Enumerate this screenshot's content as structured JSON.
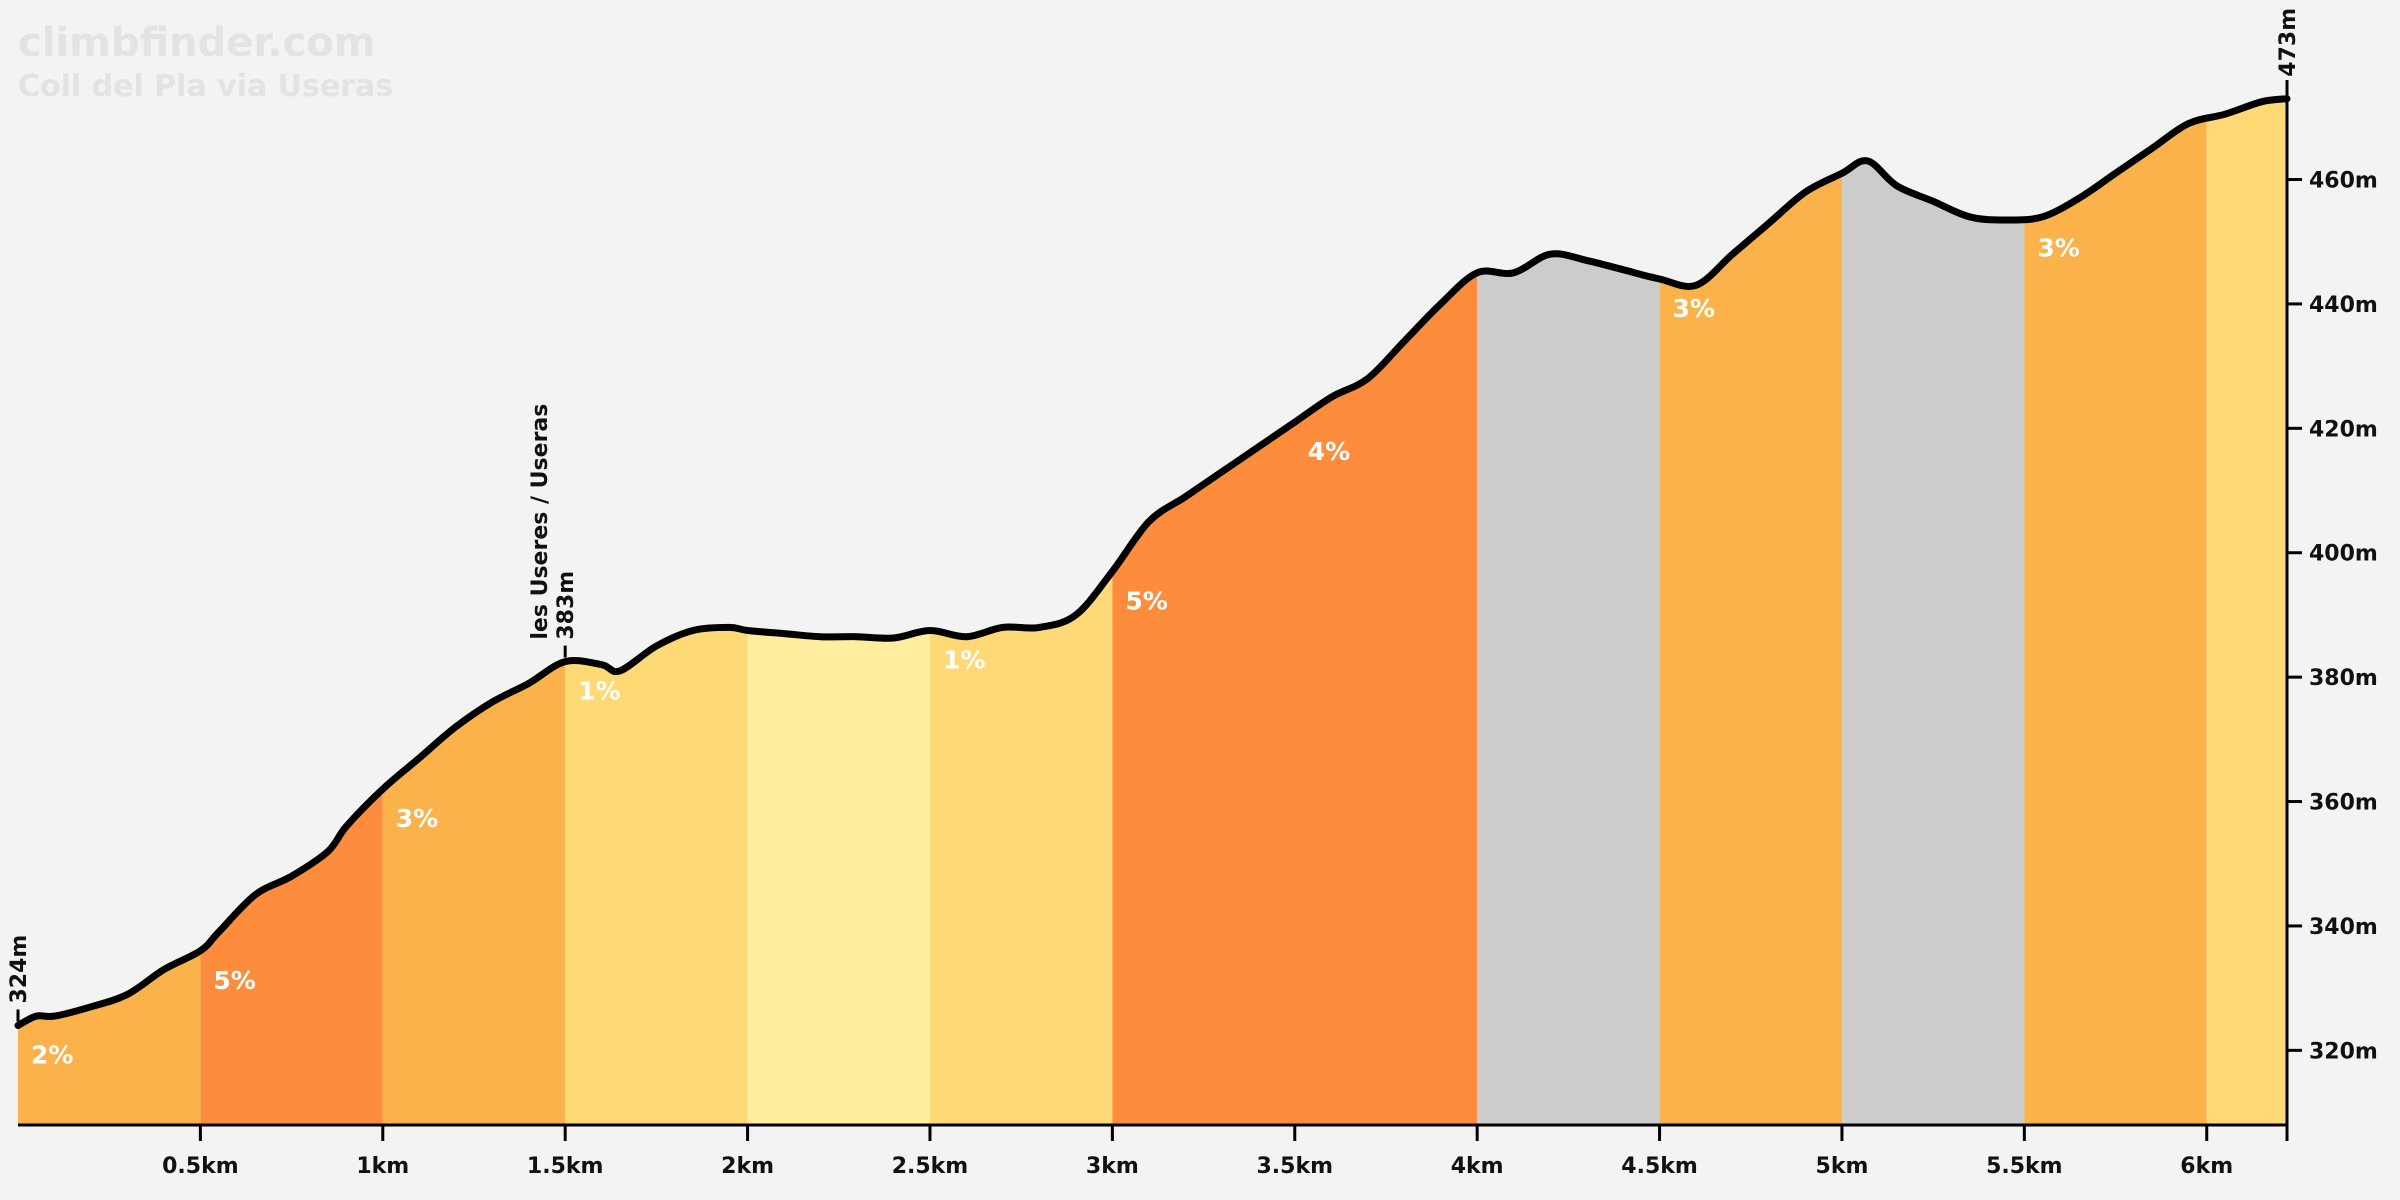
{
  "brand": {
    "site": "climbfinder.com",
    "climb_name": "Coll del Pla via Useras"
  },
  "chart_data": {
    "type": "area",
    "title": "Coll del Pla via Useras",
    "xlabel": "",
    "ylabel": "",
    "x_unit": "km",
    "y_unit": "m",
    "xlim": [
      0,
      6.22
    ],
    "ylim": [
      308,
      476
    ],
    "x_ticks": [
      0.5,
      1,
      1.5,
      2,
      2.5,
      3,
      3.5,
      4,
      4.5,
      5,
      5.5,
      6
    ],
    "x_tick_labels": [
      "0.5km",
      "1km",
      "1.5km",
      "2km",
      "2.5km",
      "3km",
      "3.5km",
      "4km",
      "4.5km",
      "5km",
      "5.5km",
      "6km"
    ],
    "y_ticks": [
      320,
      340,
      360,
      380,
      400,
      420,
      440,
      460
    ],
    "y_tick_labels": [
      "320m",
      "340m",
      "360m",
      "380m",
      "400m",
      "420m",
      "440m",
      "460m"
    ],
    "grid": false,
    "profile": {
      "x": [
        0,
        0.05,
        0.1,
        0.2,
        0.3,
        0.4,
        0.5,
        0.55,
        0.65,
        0.75,
        0.85,
        0.9,
        1.0,
        1.1,
        1.2,
        1.3,
        1.4,
        1.5,
        1.6,
        1.65,
        1.75,
        1.85,
        1.95,
        2.0,
        2.1,
        2.2,
        2.3,
        2.4,
        2.5,
        2.6,
        2.7,
        2.8,
        2.9,
        3.0,
        3.1,
        3.2,
        3.3,
        3.4,
        3.5,
        3.6,
        3.7,
        3.8,
        3.9,
        4.0,
        4.1,
        4.2,
        4.3,
        4.4,
        4.5,
        4.6,
        4.7,
        4.8,
        4.9,
        5.0,
        5.07,
        5.15,
        5.25,
        5.35,
        5.45,
        5.55,
        5.65,
        5.75,
        5.85,
        5.95,
        6.05,
        6.15,
        6.22
      ],
      "elevation": [
        324,
        325.5,
        325.5,
        327,
        329,
        333,
        336,
        339,
        345,
        348,
        352,
        356,
        362,
        367,
        372,
        376,
        379,
        382.5,
        382,
        381,
        385,
        387.5,
        388,
        387.5,
        387,
        386.5,
        386.5,
        386.3,
        387.5,
        386.5,
        388,
        388,
        390,
        397,
        405,
        409,
        413,
        417,
        421,
        425,
        428,
        434,
        440,
        445,
        445,
        448,
        447,
        445.5,
        444,
        443,
        448,
        453,
        458,
        461,
        463,
        459,
        456.5,
        454,
        453.5,
        454,
        457,
        461,
        465,
        469,
        470.5,
        472.5,
        473
      ]
    },
    "segments": [
      {
        "start": 0.0,
        "end": 0.5,
        "grade": "2%",
        "color": "#fcb24b"
      },
      {
        "start": 0.5,
        "end": 1.0,
        "grade": "5%",
        "color": "#fd8d3c"
      },
      {
        "start": 1.0,
        "end": 1.5,
        "grade": "3%",
        "color": "#fcb24b"
      },
      {
        "start": 1.5,
        "end": 2.0,
        "grade": "1%",
        "color": "#fed976"
      },
      {
        "start": 2.0,
        "end": 2.5,
        "grade": "",
        "color": "#ffeda0"
      },
      {
        "start": 2.5,
        "end": 3.0,
        "grade": "1%",
        "color": "#fed976"
      },
      {
        "start": 3.0,
        "end": 4.0,
        "grade": "5%",
        "color": "#fd8d3c"
      },
      {
        "start": 4.0,
        "end": 4.5,
        "grade": "",
        "color": "#cccccc"
      },
      {
        "start": 4.5,
        "end": 5.0,
        "grade": "3%",
        "color": "#fcb24b"
      },
      {
        "start": 5.0,
        "end": 5.5,
        "grade": "",
        "color": "#cccccc"
      },
      {
        "start": 5.5,
        "end": 6.0,
        "grade": "3%",
        "color": "#fcb24b"
      },
      {
        "start": 6.0,
        "end": 6.22,
        "grade": "",
        "color": "#fed976"
      }
    ],
    "extra_grade_labels": [
      {
        "x": 3.5,
        "grade": "4%"
      }
    ],
    "annotations": [
      {
        "x": 0,
        "lines": [
          "324m"
        ]
      },
      {
        "x": 1.5,
        "lines": [
          "les Useres / Useras",
          "383m"
        ]
      },
      {
        "x": 6.22,
        "lines": [
          "473m"
        ]
      }
    ],
    "colors": {
      "background": "#f3f3f3",
      "line": "#000000",
      "brand": "#e3e3e3"
    }
  }
}
